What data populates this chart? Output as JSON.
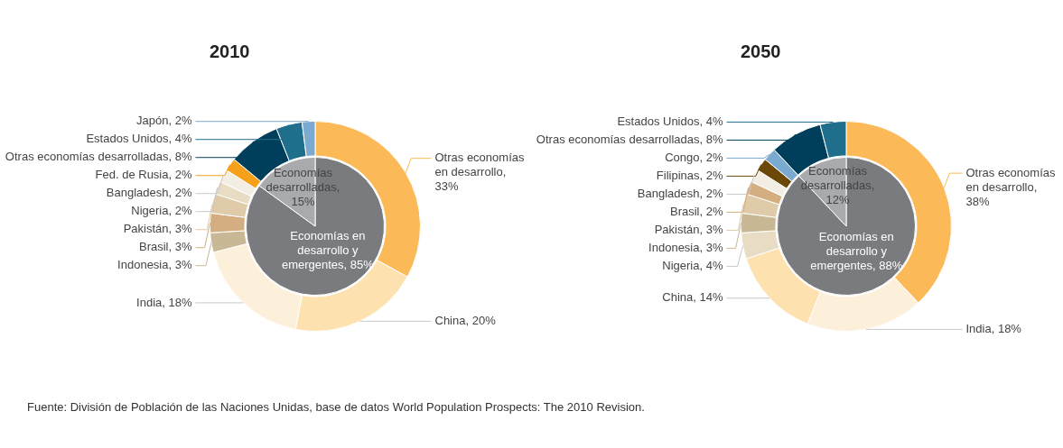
{
  "chart_data": [
    {
      "type": "donut",
      "title": "2010",
      "categories": [
        "Otras economías en desarrollo, 33%",
        "China, 20%",
        "India, 18%",
        "Indonesia, 3%",
        "Brasil, 3%",
        "Pakistán, 3%",
        "Nigeria, 2%",
        "Bangladesh, 2%",
        "Fed. de Rusia, 2%",
        "Otras economías desarrolladas, 8%",
        "Estados Unidos, 4%",
        "Japón, 2%"
      ],
      "values": [
        33,
        20,
        18,
        3,
        3,
        3,
        2,
        2,
        2,
        8,
        4,
        2
      ],
      "colors": [
        "#fbb957",
        "#fde2b0",
        "#fdf0da",
        "#c8b896",
        "#d4ae80",
        "#dfcaa9",
        "#e9dcc5",
        "#f3eee4",
        "#f7a11a",
        "#003f5c",
        "#1f6e8c",
        "#7aaad0"
      ]
    },
    {
      "type": "pie",
      "categories": [
        "Economías en desarrollo y emergentes, 85%",
        "Economías desarrolladas, 15%"
      ],
      "values": [
        85,
        15
      ],
      "colors": [
        "#797b7f",
        "#a9aaad"
      ]
    },
    {
      "type": "donut",
      "title": "2050",
      "categories": [
        "Otras economías en desarrollo, 38%",
        "India, 18%",
        "China, 14%",
        "Nigeria, 4%",
        "Indonesia, 3%",
        "Pakistán, 3%",
        "Brasil, 2%",
        "Bangladesh, 2%",
        "Filipinas, 2%",
        "Congo, 2%",
        "Otras economías desarrolladas, 8%",
        "Estados Unidos, 4%"
      ],
      "values": [
        38,
        18,
        14,
        4,
        3,
        3,
        2,
        2,
        2,
        2,
        8,
        4
      ],
      "colors": [
        "#fbb957",
        "#fdf0da",
        "#fde2b0",
        "#e9dcc5",
        "#c8b896",
        "#dfcaa9",
        "#d4ae80",
        "#f3eee4",
        "#6b4708",
        "#7aaad0",
        "#003f5c",
        "#1f6e8c"
      ]
    },
    {
      "type": "pie",
      "categories": [
        "Economías en desarrollo y emergentes, 88%",
        "Economías desarrolladas, 12%"
      ],
      "values": [
        88,
        12
      ],
      "colors": [
        "#797b7f",
        "#a9aaad"
      ],
      "annotations": [
        "Fuente: División de Población de las Naciones Unidas, base de datos World Population Prospects: The 2010 Revision."
      ]
    }
  ]
}
